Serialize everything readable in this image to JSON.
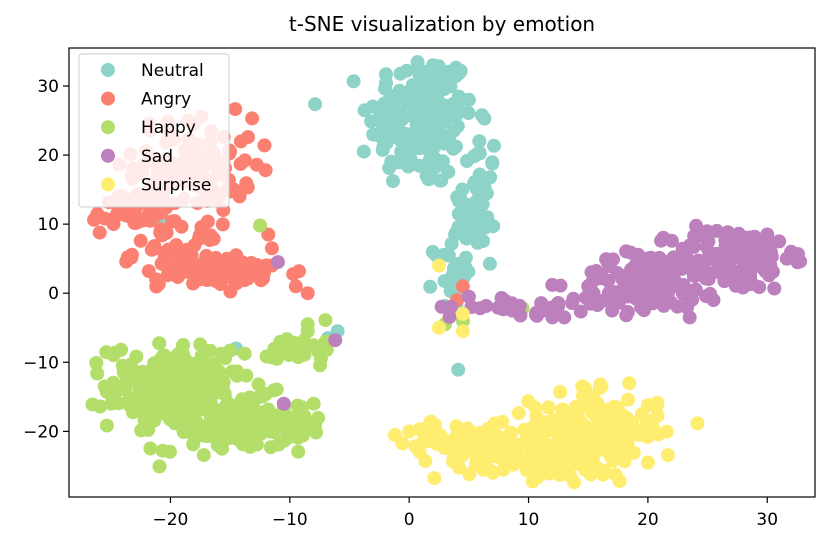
{
  "chart_data": {
    "type": "scatter",
    "title": "t-SNE visualization by emotion",
    "xlabel": "",
    "ylabel": "",
    "xlim": [
      -28.5,
      34
    ],
    "ylim": [
      -29.5,
      35.5
    ],
    "xticks": [
      -20,
      -10,
      0,
      10,
      20,
      30
    ],
    "yticks": [
      30,
      20,
      10,
      0,
      -10,
      -20
    ],
    "grid": false,
    "legend_position": "top-left",
    "series": [
      {
        "name": "Neutral",
        "color": "#8dd3c7",
        "clusters": [
          {
            "cx": 1.0,
            "cy": 25.0,
            "sx": 2.2,
            "sy": 5.0,
            "n": 170
          },
          {
            "cx": 5.5,
            "cy": 12.0,
            "sx": 0.9,
            "sy": 5.5,
            "n": 60
          },
          {
            "cx": 3.5,
            "cy": 3.0,
            "sx": 0.7,
            "sy": 2.5,
            "n": 20
          }
        ],
        "points": [
          [
            -3.8,
            20.5
          ],
          [
            -1.5,
            28.5
          ],
          [
            2.0,
            33.0
          ],
          [
            5.0,
            28.0
          ],
          [
            6.3,
            15.5
          ],
          [
            -6.0,
            -5.5
          ],
          [
            -6.8,
            -6.5
          ],
          [
            -14.5,
            -8.0
          ],
          [
            -21.0,
            10.8
          ],
          [
            -8.5,
            -7.5
          ]
        ]
      },
      {
        "name": "Angry",
        "color": "#fb8072",
        "clusters": [
          {
            "cx": -18.0,
            "cy": 18.5,
            "sx": 2.5,
            "sy": 3.5,
            "n": 110
          },
          {
            "cx": -23.0,
            "cy": 12.0,
            "sx": 1.8,
            "sy": 1.8,
            "n": 45
          },
          {
            "cx": -19.5,
            "cy": 6.0,
            "sx": 1.8,
            "sy": 2.0,
            "n": 45
          },
          {
            "cx": -15.0,
            "cy": 3.0,
            "sx": 3.0,
            "sy": 1.0,
            "n": 70
          }
        ],
        "points": [
          [
            -11.8,
            8.5
          ],
          [
            -11.5,
            6.5
          ],
          [
            -11.5,
            4.0
          ],
          [
            -9.5,
            1.0
          ],
          [
            -8.5,
            0.0
          ],
          [
            -14.5,
            5.5
          ],
          [
            -15.0,
            20.5
          ],
          [
            -22.0,
            14.5
          ],
          [
            -25.5,
            10.8
          ],
          [
            4.5,
            1.0
          ],
          [
            4.0,
            -1.0
          ]
        ]
      },
      {
        "name": "Happy",
        "color": "#b3de69",
        "clusters": [
          {
            "cx": -19.5,
            "cy": -13.5,
            "sx": 2.8,
            "sy": 3.0,
            "n": 200
          },
          {
            "cx": -15.0,
            "cy": -19.0,
            "sx": 3.2,
            "sy": 1.8,
            "n": 120
          },
          {
            "cx": -10.5,
            "cy": -19.0,
            "sx": 1.3,
            "sy": 1.5,
            "n": 30
          },
          {
            "cx": -9.0,
            "cy": -8.0,
            "sx": 1.2,
            "sy": 1.2,
            "n": 25
          }
        ],
        "points": [
          [
            -12.5,
            9.8
          ],
          [
            -8.5,
            -4.5
          ],
          [
            -8.5,
            -5.5
          ],
          [
            -7.0,
            -7.0
          ],
          [
            -10.5,
            -8.5
          ],
          [
            -15.0,
            -8.3
          ],
          [
            3.0,
            -4.5
          ],
          [
            4.5,
            -4.0
          ],
          [
            8.0,
            -2.0
          ],
          [
            9.5,
            -2.2
          ],
          [
            -8.0,
            -16.0
          ],
          [
            -9.0,
            -16.5
          ],
          [
            -25.5,
            -13.5
          ],
          [
            -24.0,
            -10.5
          ]
        ]
      },
      {
        "name": "Sad",
        "color": "#bc80bd",
        "clusters": [
          {
            "cx": 27.0,
            "cy": 5.0,
            "sx": 2.5,
            "sy": 2.3,
            "n": 130
          },
          {
            "cx": 20.0,
            "cy": 1.5,
            "sx": 3.0,
            "sy": 2.2,
            "n": 130
          },
          {
            "cx": 9.5,
            "cy": -2.0,
            "sx": 3.0,
            "sy": 0.6,
            "n": 35
          }
        ],
        "points": [
          [
            32.0,
            6.0
          ],
          [
            30.0,
            8.5
          ],
          [
            31.0,
            7.5
          ],
          [
            17.0,
            -2.5
          ],
          [
            15.0,
            1.0
          ],
          [
            5.0,
            -0.5
          ],
          [
            12.0,
            -3.5
          ],
          [
            13.0,
            -3.5
          ],
          [
            -11.0,
            4.5
          ],
          [
            -6.2,
            -6.8
          ],
          [
            -10.5,
            -16.0
          ],
          [
            23.5,
            -3.5
          ],
          [
            25.5,
            -1.0
          ]
        ]
      },
      {
        "name": "Surprise",
        "color": "#ffed6f",
        "clusters": [
          {
            "cx": 15.5,
            "cy": -20.0,
            "sx": 2.7,
            "sy": 2.7,
            "n": 190
          },
          {
            "cx": 5.5,
            "cy": -21.5,
            "sx": 3.0,
            "sy": 1.6,
            "n": 90
          },
          {
            "cx": 11.0,
            "cy": -24.0,
            "sx": 3.0,
            "sy": 1.5,
            "n": 60
          }
        ],
        "points": [
          [
            20.0,
            -24.5
          ],
          [
            19.5,
            -17.5
          ],
          [
            14.5,
            -13.5
          ],
          [
            0.0,
            -20.0
          ],
          [
            2.5,
            4.0
          ],
          [
            4.5,
            -3.0
          ],
          [
            4.5,
            -5.5
          ],
          [
            2.5,
            -5.0
          ],
          [
            7.0,
            -26.0
          ],
          [
            13.5,
            -26.5
          ]
        ]
      }
    ]
  }
}
